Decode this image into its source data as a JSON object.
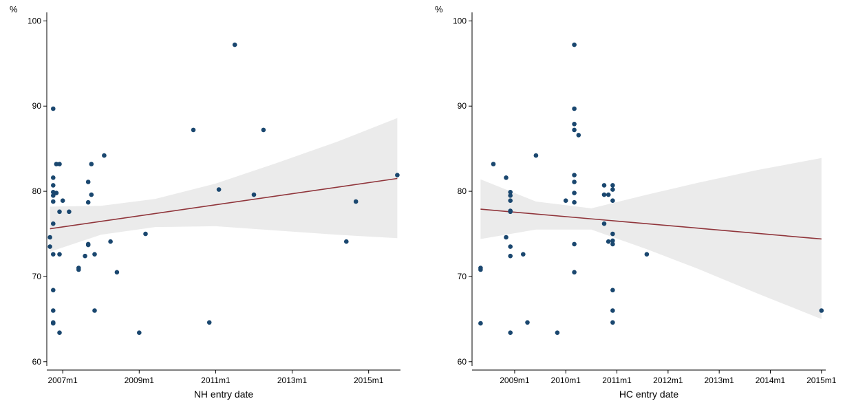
{
  "colors": {
    "point": "#1a476f",
    "fit": "#90353b",
    "ci": "#ebebeb",
    "axis": "#000000"
  },
  "chart_data": [
    {
      "type": "scatter",
      "xlabel": "NH entry date",
      "ylabel": "%",
      "xlim": [
        "2006m8",
        "2015m11"
      ],
      "ylim": [
        59.5,
        101
      ],
      "yticks": [
        60,
        70,
        80,
        90,
        100
      ],
      "xticks": [
        "2007m1",
        "2009m1",
        "2011m1",
        "2013m1",
        "2015m1"
      ],
      "points": [
        {
          "x": "2006m9",
          "y": 74.6
        },
        {
          "x": "2006m9",
          "y": 73.5
        },
        {
          "x": "2006m10",
          "y": 89.7
        },
        {
          "x": "2006m10",
          "y": 81.6
        },
        {
          "x": "2006m10",
          "y": 80.7
        },
        {
          "x": "2006m10",
          "y": 79.9
        },
        {
          "x": "2006m10",
          "y": 79.5
        },
        {
          "x": "2006m10",
          "y": 78.8
        },
        {
          "x": "2006m10",
          "y": 76.2
        },
        {
          "x": "2006m10",
          "y": 72.6
        },
        {
          "x": "2006m10",
          "y": 68.4
        },
        {
          "x": "2006m10",
          "y": 66.0
        },
        {
          "x": "2006m10",
          "y": 64.6
        },
        {
          "x": "2006m10",
          "y": 64.5
        },
        {
          "x": "2006m11",
          "y": 83.2
        },
        {
          "x": "2006m11",
          "y": 79.8
        },
        {
          "x": "2006m12",
          "y": 83.2
        },
        {
          "x": "2006m12",
          "y": 77.6
        },
        {
          "x": "2006m12",
          "y": 72.6
        },
        {
          "x": "2006m12",
          "y": 63.4
        },
        {
          "x": "2007m1",
          "y": 78.9
        },
        {
          "x": "2007m3",
          "y": 77.6
        },
        {
          "x": "2007m6",
          "y": 71.0
        },
        {
          "x": "2007m6",
          "y": 70.8
        },
        {
          "x": "2007m8",
          "y": 72.4
        },
        {
          "x": "2007m9",
          "y": 81.1
        },
        {
          "x": "2007m9",
          "y": 78.7
        },
        {
          "x": "2007m9",
          "y": 73.8
        },
        {
          "x": "2007m9",
          "y": 73.7
        },
        {
          "x": "2007m10",
          "y": 83.2
        },
        {
          "x": "2007m10",
          "y": 79.6
        },
        {
          "x": "2007m11",
          "y": 72.6
        },
        {
          "x": "2007m11",
          "y": 66.0
        },
        {
          "x": "2008m2",
          "y": 84.2
        },
        {
          "x": "2008m4",
          "y": 74.1
        },
        {
          "x": "2008m6",
          "y": 70.5
        },
        {
          "x": "2009m1",
          "y": 63.4
        },
        {
          "x": "2009m3",
          "y": 75.0
        },
        {
          "x": "2010m6",
          "y": 87.2
        },
        {
          "x": "2010m11",
          "y": 64.6
        },
        {
          "x": "2011m2",
          "y": 80.2
        },
        {
          "x": "2011m7",
          "y": 97.2
        },
        {
          "x": "2012m1",
          "y": 79.6
        },
        {
          "x": "2012m4",
          "y": 87.2
        },
        {
          "x": "2014m6",
          "y": 74.1
        },
        {
          "x": "2014m9",
          "y": 78.8
        },
        {
          "x": "2015m10",
          "y": 81.9
        }
      ],
      "fit_line": [
        {
          "x": "2006m9",
          "y": 75.6
        },
        {
          "x": "2015m10",
          "y": 81.5
        }
      ],
      "ci_band": [
        {
          "x": "2006m9",
          "lo": 72.9,
          "hi": 78.2
        },
        {
          "x": "2008m1",
          "lo": 74.9,
          "hi": 78.3
        },
        {
          "x": "2009m6",
          "lo": 75.8,
          "hi": 79.1
        },
        {
          "x": "2011m1",
          "lo": 75.9,
          "hi": 80.9
        },
        {
          "x": "2012m8",
          "lo": 75.4,
          "hi": 83.3
        },
        {
          "x": "2014m3",
          "lo": 74.9,
          "hi": 85.8
        },
        {
          "x": "2015m10",
          "lo": 74.5,
          "hi": 88.6
        }
      ],
      "grid": false,
      "legend": "none"
    },
    {
      "type": "scatter",
      "xlabel": "HC entry date",
      "ylabel": "%",
      "xlim": [
        "2008m3",
        "2015m2"
      ],
      "ylim": [
        59.5,
        101
      ],
      "yticks": [
        60,
        70,
        80,
        90,
        100
      ],
      "xticks": [
        "2009m1",
        "2010m1",
        "2011m1",
        "2012m1",
        "2013m1",
        "2014m1",
        "2015m1"
      ],
      "points": [
        {
          "x": "2008m5",
          "y": 71.0
        },
        {
          "x": "2008m5",
          "y": 70.8
        },
        {
          "x": "2008m5",
          "y": 64.5
        },
        {
          "x": "2008m8",
          "y": 83.2
        },
        {
          "x": "2008m11",
          "y": 81.6
        },
        {
          "x": "2008m11",
          "y": 74.6
        },
        {
          "x": "2008m12",
          "y": 79.9
        },
        {
          "x": "2008m12",
          "y": 79.5
        },
        {
          "x": "2008m12",
          "y": 78.9
        },
        {
          "x": "2008m12",
          "y": 77.7
        },
        {
          "x": "2008m12",
          "y": 77.6
        },
        {
          "x": "2008m12",
          "y": 73.5
        },
        {
          "x": "2008m12",
          "y": 72.4
        },
        {
          "x": "2008m12",
          "y": 63.4
        },
        {
          "x": "2009m3",
          "y": 72.6
        },
        {
          "x": "2009m4",
          "y": 64.6
        },
        {
          "x": "2009m6",
          "y": 84.2
        },
        {
          "x": "2009m11",
          "y": 63.4
        },
        {
          "x": "2010m1",
          "y": 78.9
        },
        {
          "x": "2010m3",
          "y": 97.2
        },
        {
          "x": "2010m3",
          "y": 89.7
        },
        {
          "x": "2010m3",
          "y": 87.9
        },
        {
          "x": "2010m3",
          "y": 87.2
        },
        {
          "x": "2010m3",
          "y": 81.9
        },
        {
          "x": "2010m3",
          "y": 81.1
        },
        {
          "x": "2010m3",
          "y": 79.8
        },
        {
          "x": "2010m3",
          "y": 78.7
        },
        {
          "x": "2010m3",
          "y": 73.8
        },
        {
          "x": "2010m3",
          "y": 70.5
        },
        {
          "x": "2010m4",
          "y": 86.6
        },
        {
          "x": "2010m10",
          "y": 80.7
        },
        {
          "x": "2010m10",
          "y": 79.6
        },
        {
          "x": "2010m10",
          "y": 76.2
        },
        {
          "x": "2010m11",
          "y": 79.6
        },
        {
          "x": "2010m11",
          "y": 74.1
        },
        {
          "x": "2010m12",
          "y": 80.7
        },
        {
          "x": "2010m12",
          "y": 80.2
        },
        {
          "x": "2010m12",
          "y": 78.9
        },
        {
          "x": "2010m12",
          "y": 75.0
        },
        {
          "x": "2010m12",
          "y": 74.2
        },
        {
          "x": "2010m12",
          "y": 73.8
        },
        {
          "x": "2010m12",
          "y": 68.4
        },
        {
          "x": "2010m12",
          "y": 66.0
        },
        {
          "x": "2010m12",
          "y": 64.6
        },
        {
          "x": "2011m8",
          "y": 72.6
        },
        {
          "x": "2015m1",
          "y": 66.0
        }
      ],
      "fit_line": [
        {
          "x": "2008m5",
          "y": 77.9
        },
        {
          "x": "2015m1",
          "y": 74.4
        }
      ],
      "ci_band": [
        {
          "x": "2008m5",
          "lo": 74.4,
          "hi": 81.4
        },
        {
          "x": "2009m6",
          "lo": 75.5,
          "hi": 78.8
        },
        {
          "x": "2010m7",
          "lo": 75.5,
          "hi": 78.0
        },
        {
          "x": "2011m8",
          "lo": 73.2,
          "hi": 79.6
        },
        {
          "x": "2012m8",
          "lo": 70.9,
          "hi": 81.0
        },
        {
          "x": "2013m10",
          "lo": 68.0,
          "hi": 82.5
        },
        {
          "x": "2015m1",
          "lo": 65.0,
          "hi": 83.9
        }
      ],
      "grid": false,
      "legend": "none"
    }
  ]
}
